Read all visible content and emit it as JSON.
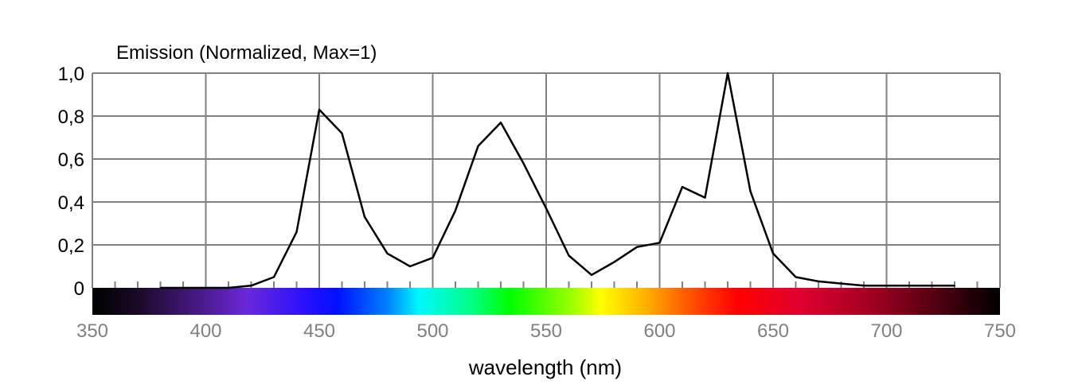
{
  "chart_data": {
    "type": "line",
    "title": "Emission (Normalized, Max=1)",
    "xlabel": "wavelength (nm)",
    "ylabel": "",
    "xlim": [
      350,
      750
    ],
    "ylim": [
      0,
      1.0
    ],
    "x_ticks": [
      350,
      400,
      450,
      500,
      550,
      600,
      650,
      700,
      750
    ],
    "x_tick_labels": [
      "350",
      "400",
      "450",
      "500",
      "550",
      "600",
      "650",
      "700",
      "750"
    ],
    "y_ticks": [
      0,
      0.2,
      0.4,
      0.6,
      0.8,
      1.0
    ],
    "y_tick_labels": [
      "0",
      "0,2",
      "0,4",
      "0,6",
      "0,8",
      "1,0"
    ],
    "grid": true,
    "spectrum_bar": true,
    "series": [
      {
        "x": [
          380,
          390,
          400,
          410,
          420,
          430,
          440,
          450,
          460,
          470,
          480,
          490,
          500,
          510,
          520,
          530,
          540,
          550,
          560,
          570,
          580,
          590,
          600,
          610,
          620,
          630,
          640,
          650,
          660,
          670,
          680,
          690,
          700,
          710,
          720,
          730
        ],
        "y": [
          0.0,
          0.0,
          0.0,
          0.0,
          0.01,
          0.05,
          0.26,
          0.83,
          0.72,
          0.33,
          0.16,
          0.1,
          0.14,
          0.36,
          0.66,
          0.77,
          0.58,
          0.37,
          0.15,
          0.06,
          0.12,
          0.19,
          0.21,
          0.47,
          0.42,
          1.0,
          0.45,
          0.16,
          0.05,
          0.03,
          0.02,
          0.01,
          0.01,
          0.01,
          0.01,
          0.01
        ],
        "color": "#000000"
      }
    ],
    "colors": {
      "line": "#000000",
      "grid": "#808080",
      "tick_text": "#808080",
      "text": "#000000"
    }
  }
}
